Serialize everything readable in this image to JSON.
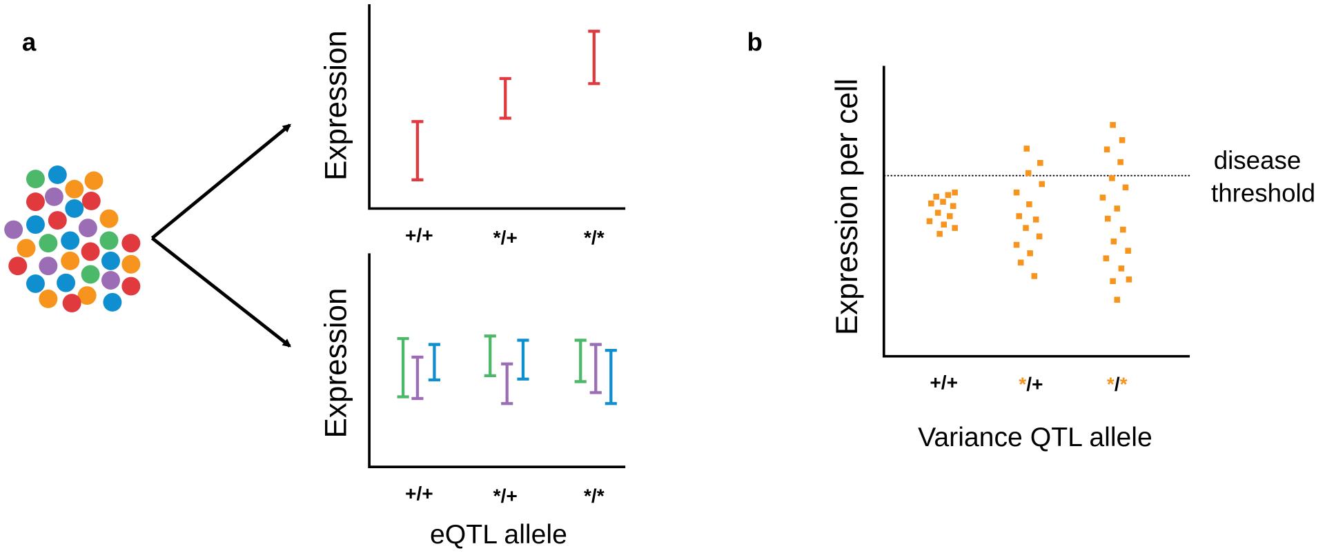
{
  "panel_a": {
    "label": "a",
    "top_plot": {
      "y_label": "Expression",
      "x_ticks": [
        "+/+",
        "*/+",
        "*/*"
      ]
    },
    "bottom_plot": {
      "y_label": "Expression",
      "x_ticks": [
        "+/+",
        "*/+",
        "*/*"
      ],
      "x_label": "eQTL allele"
    }
  },
  "panel_b": {
    "label": "b",
    "y_label": "Expression per cell",
    "threshold_label": [
      "disease",
      "threshold"
    ],
    "x_ticks": [
      [
        "+/+"
      ],
      [
        "*",
        "/+"
      ],
      [
        "*",
        "/",
        "*"
      ]
    ],
    "x_label": "Variance QTL allele"
  }
}
